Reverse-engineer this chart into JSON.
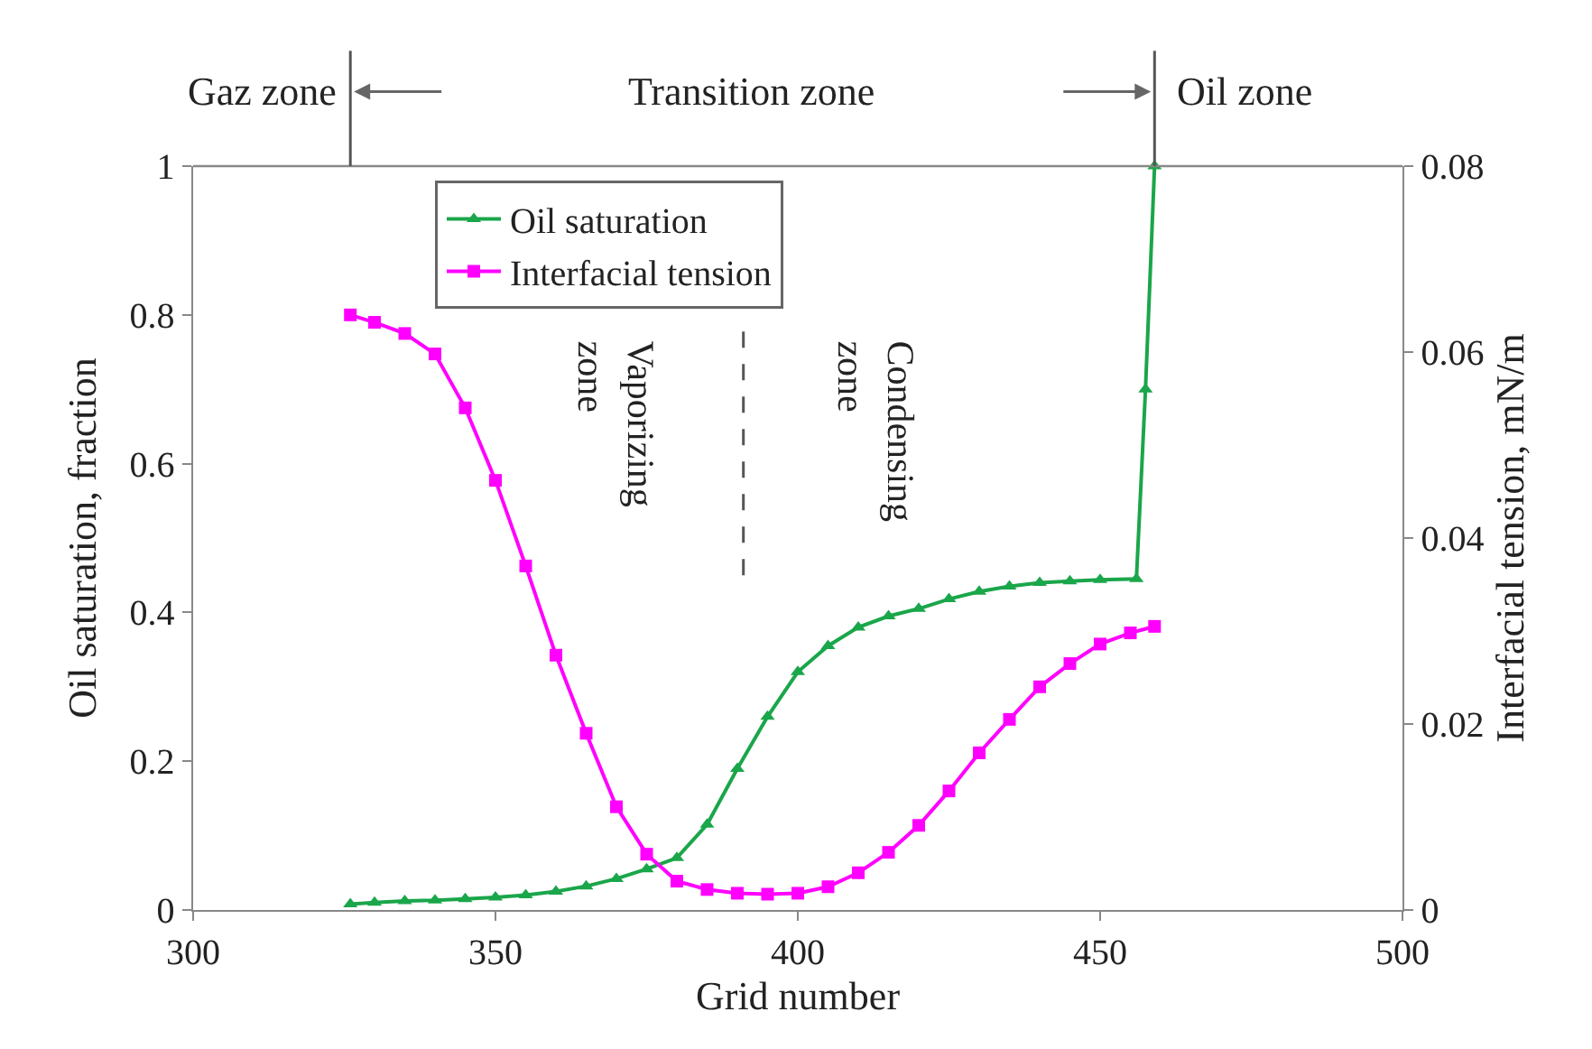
{
  "chart_data": {
    "type": "line",
    "xlabel": "Grid number",
    "ylabel": "Oil saturation, fraction",
    "y2label": "Interfacial tension, mN/m",
    "xlim": [
      300,
      500
    ],
    "xticks": [
      300,
      350,
      400,
      450,
      500
    ],
    "ylim": [
      0,
      1
    ],
    "yticks": [
      0,
      0.2,
      0.4,
      0.6,
      0.8,
      1
    ],
    "y2lim": [
      0,
      0.08
    ],
    "y2ticks": [
      0,
      0.02,
      0.04,
      0.06,
      0.08
    ],
    "grid": false,
    "legend": "top",
    "line_style": "solid",
    "series": [
      {
        "name": "Oil saturation",
        "color": "#1aa64a",
        "marker": "triangle",
        "x": [
          326,
          330,
          335,
          340,
          345,
          350,
          355,
          360,
          365,
          370,
          375,
          380,
          385,
          390,
          395,
          400,
          405,
          410,
          415,
          420,
          425,
          430,
          435,
          440,
          445,
          450,
          456,
          457.5,
          459
        ],
        "values": [
          0.008,
          0.01,
          0.012,
          0.013,
          0.015,
          0.017,
          0.02,
          0.025,
          0.032,
          0.042,
          0.055,
          0.07,
          0.115,
          0.19,
          0.26,
          0.32,
          0.355,
          0.38,
          0.395,
          0.405,
          0.418,
          0.428,
          0.435,
          0.44,
          0.442,
          0.444,
          0.445,
          0.7,
          1.0
        ]
      },
      {
        "name": "Interfacial tension",
        "color": "#ff00ff",
        "marker": "square",
        "axis": "y2",
        "x": [
          326,
          330,
          335,
          340,
          345,
          350,
          355,
          360,
          365,
          370,
          375,
          380,
          385,
          390,
          395,
          400,
          405,
          410,
          415,
          420,
          425,
          430,
          435,
          440,
          445,
          450,
          455,
          459
        ],
        "values": [
          0.064,
          0.0632,
          0.062,
          0.0598,
          0.054,
          0.0462,
          0.037,
          0.0274,
          0.019,
          0.0111,
          0.006,
          0.0031,
          0.0022,
          0.0018,
          0.0017,
          0.0018,
          0.0025,
          0.004,
          0.0062,
          0.0091,
          0.0128,
          0.0169,
          0.0205,
          0.024,
          0.0265,
          0.0286,
          0.0298,
          0.0305
        ]
      }
    ],
    "ref_lines": [
      {
        "axis": "x",
        "value": 391,
        "line_style": "dashed",
        "color": "#555555"
      }
    ],
    "annotations": [
      "Gaz zone",
      "Transition zone",
      "Oil zone",
      "Vaporizing\nzone",
      "Condensing\nzone"
    ]
  }
}
